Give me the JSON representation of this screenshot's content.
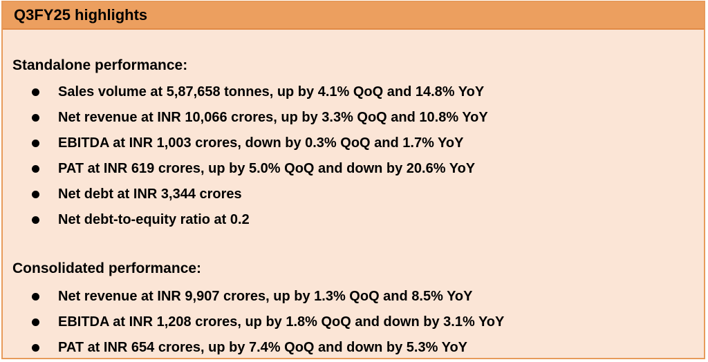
{
  "header": {
    "title": "Q3FY25 highlights"
  },
  "standalone": {
    "heading": "Standalone performance:",
    "items": [
      "Sales volume at 5,87,658 tonnes, up by 4.1% QoQ and 14.8% YoY",
      "Net revenue at INR 10,066 crores, up by 3.3% QoQ and 10.8% YoY",
      "EBITDA at INR 1,003 crores, down by 0.3% QoQ and 1.7% YoY",
      "PAT at INR 619 crores, up by 5.0% QoQ and down by 20.6% YoY",
      "Net debt at INR 3,344 crores",
      "Net debt-to-equity ratio at 0.2"
    ]
  },
  "consolidated": {
    "heading": "Consolidated performance:",
    "items": [
      "Net revenue at INR 9,907 crores, up by 1.3% QoQ and 8.5% YoY",
      "EBITDA at INR 1,208 crores, up by 1.8% QoQ and down by 3.1% YoY",
      "PAT at INR 654 crores, up by 7.4% QoQ and down by 5.3% YoY"
    ]
  },
  "colors": {
    "header_bg": "#ec9f5f",
    "body_bg": "#fbe5d6",
    "border": "#e79a5a"
  }
}
